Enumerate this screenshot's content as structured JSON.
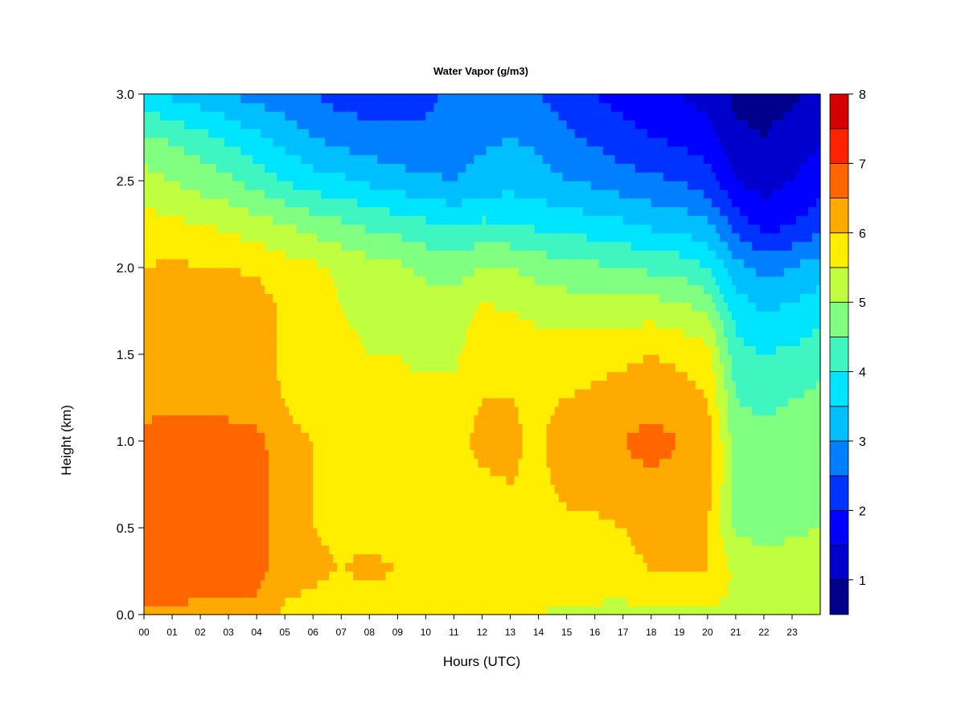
{
  "chart_data": {
    "type": "heatmap",
    "title": "Water Vapor (g/m3)",
    "xlabel": "Hours (UTC)",
    "ylabel": "Height (km)",
    "x_tick_labels": [
      "00",
      "01",
      "02",
      "03",
      "04",
      "05",
      "06",
      "07",
      "08",
      "09",
      "10",
      "11",
      "12",
      "13",
      "14",
      "15",
      "16",
      "17",
      "18",
      "19",
      "20",
      "21",
      "22",
      "23"
    ],
    "y_tick_labels": [
      "0.0",
      "0.5",
      "1.0",
      "1.5",
      "2.0",
      "2.5",
      "3.0"
    ],
    "xlim": [
      0,
      24
    ],
    "ylim": [
      0,
      3.0
    ],
    "colorbar": {
      "min": 0.5,
      "max": 8,
      "tick_labels": [
        "1",
        "2",
        "3",
        "4",
        "5",
        "6",
        "7",
        "8"
      ],
      "levels": [
        0.5,
        1,
        1.5,
        2,
        2.5,
        3,
        3.5,
        4,
        4.5,
        5,
        5.5,
        6,
        6.5,
        7,
        7.5,
        8
      ],
      "colors": [
        "#00008b",
        "#0000cd",
        "#0000ff",
        "#0033ff",
        "#0080ff",
        "#00bfff",
        "#00e5ff",
        "#3ff5c0",
        "#80ff80",
        "#c0ff40",
        "#ffee00",
        "#ffaa00",
        "#ff6600",
        "#ff2200",
        "#d40000",
        "#8b0000"
      ]
    },
    "z_units": "g/m3",
    "grid_heights_km": [
      0.0,
      0.25,
      0.5,
      0.75,
      1.0,
      1.25,
      1.5,
      1.75,
      2.0,
      2.25,
      2.5,
      2.75,
      3.0
    ],
    "grid_hours": [
      0,
      1,
      2,
      3,
      4,
      5,
      6,
      7,
      8,
      9,
      10,
      11,
      12,
      13,
      14,
      15,
      16,
      17,
      18,
      19,
      20,
      21,
      22,
      23,
      24
    ],
    "values": [
      [
        6.4,
        6.8,
        6.9,
        6.9,
        6.8,
        6.1,
        6.2,
        6.4,
        6.0,
        5.7,
        5.2,
        4.6,
        3.6
      ],
      [
        6.4,
        6.9,
        7.0,
        7.0,
        7.0,
        6.2,
        6.3,
        6.4,
        6.1,
        5.6,
        5.0,
        4.4,
        3.4
      ],
      [
        6.3,
        6.8,
        6.9,
        6.9,
        6.9,
        6.2,
        6.3,
        6.4,
        6.0,
        5.5,
        4.8,
        4.2,
        3.2
      ],
      [
        6.3,
        6.8,
        6.9,
        6.9,
        6.8,
        6.2,
        6.2,
        6.4,
        6.0,
        5.4,
        4.6,
        3.9,
        3.0
      ],
      [
        6.3,
        6.7,
        6.8,
        6.8,
        6.7,
        6.1,
        6.2,
        6.3,
        5.9,
        5.2,
        4.3,
        3.6,
        2.8
      ],
      [
        5.9,
        6.2,
        6.1,
        6.1,
        6.1,
        6.0,
        5.9,
        5.9,
        5.7,
        5.0,
        4.0,
        3.3,
        2.7
      ],
      [
        5.8,
        6.1,
        6.0,
        6.0,
        6.0,
        5.8,
        5.8,
        5.8,
        5.6,
        4.8,
        3.7,
        3.0,
        2.5
      ],
      [
        5.6,
        6.0,
        5.9,
        5.9,
        5.9,
        5.7,
        5.6,
        5.5,
        5.4,
        4.6,
        3.6,
        2.8,
        2.3
      ],
      [
        5.6,
        6.1,
        5.9,
        5.9,
        5.9,
        5.6,
        5.5,
        5.4,
        5.2,
        4.4,
        3.4,
        2.7,
        2.2
      ],
      [
        5.6,
        6.0,
        5.8,
        5.8,
        5.8,
        5.6,
        5.5,
        5.3,
        5.1,
        4.3,
        3.2,
        2.6,
        2.3
      ],
      [
        5.6,
        6.0,
        5.8,
        5.8,
        5.8,
        5.6,
        5.4,
        5.2,
        4.9,
        4.1,
        3.1,
        2.6,
        2.4
      ],
      [
        5.6,
        6.0,
        5.8,
        5.8,
        5.8,
        5.6,
        5.4,
        5.2,
        4.8,
        3.9,
        3.0,
        2.7,
        2.6
      ],
      [
        5.5,
        6.0,
        5.9,
        5.9,
        6.2,
        6.0,
        5.8,
        5.6,
        5.0,
        4.1,
        3.2,
        2.9,
        2.7
      ],
      [
        5.5,
        6.0,
        5.9,
        6.0,
        6.1,
        6.0,
        5.8,
        5.5,
        5.0,
        4.0,
        3.3,
        3.0,
        2.6
      ],
      [
        5.5,
        5.9,
        5.8,
        5.9,
        5.9,
        5.9,
        5.7,
        5.4,
        4.8,
        3.9,
        3.2,
        2.9,
        2.5
      ],
      [
        5.3,
        6.0,
        5.9,
        6.1,
        6.3,
        6.0,
        5.7,
        5.3,
        4.7,
        3.8,
        3.0,
        2.6,
        2.2
      ],
      [
        5.3,
        6.0,
        5.9,
        6.2,
        6.4,
        6.1,
        5.8,
        5.3,
        4.6,
        3.7,
        2.9,
        2.4,
        2.0
      ],
      [
        5.3,
        5.9,
        6.0,
        6.3,
        6.5,
        6.2,
        5.9,
        5.3,
        4.5,
        3.6,
        2.7,
        2.2,
        1.8
      ],
      [
        5.4,
        6.0,
        6.1,
        6.4,
        6.7,
        6.3,
        6.0,
        5.3,
        4.4,
        3.4,
        2.6,
        2.0,
        1.6
      ],
      [
        5.4,
        6.0,
        6.0,
        6.3,
        6.5,
        6.2,
        5.9,
        5.2,
        4.3,
        3.3,
        2.5,
        1.9,
        1.5
      ],
      [
        5.4,
        6.0,
        6.0,
        6.2,
        6.3,
        6.0,
        5.7,
        4.9,
        4.0,
        3.1,
        2.2,
        1.7,
        1.3
      ],
      [
        5.4,
        5.4,
        4.9,
        4.8,
        4.7,
        4.5,
        4.2,
        3.8,
        3.2,
        2.3,
        1.5,
        1.1,
        0.9
      ],
      [
        5.3,
        5.3,
        4.8,
        4.7,
        4.6,
        4.4,
        4.0,
        3.5,
        2.8,
        1.8,
        1.3,
        1.0,
        0.8
      ],
      [
        5.3,
        5.3,
        4.9,
        4.8,
        4.7,
        4.5,
        4.1,
        3.6,
        3.0,
        2.0,
        1.5,
        1.2,
        0.9
      ],
      [
        5.4,
        5.4,
        5.0,
        4.9,
        4.8,
        4.6,
        4.3,
        3.8,
        3.3,
        2.3,
        1.8,
        1.4,
        1.1
      ]
    ]
  }
}
